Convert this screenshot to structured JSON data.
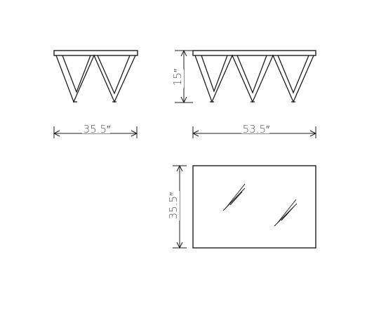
{
  "dimensions": {
    "side_width": "35.5″",
    "front_width": "53.5″",
    "height": "15″",
    "top_depth": "35.5″"
  },
  "colors": {
    "line": "#1e1e1e",
    "dimension_text": "#555555"
  }
}
